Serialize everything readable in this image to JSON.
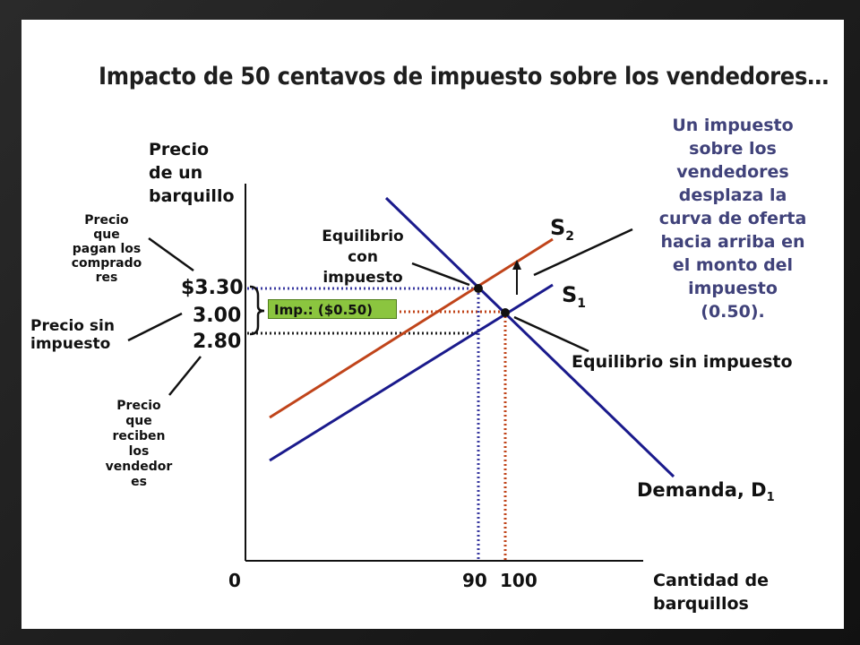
{
  "title": "Impacto de 50 centavos de impuesto sobre los vendedores…",
  "y_axis_label": [
    "Precio",
    "de un",
    "barquillo"
  ],
  "x_axis_label": [
    "Cantidad de",
    "barquillos"
  ],
  "origin_label": "0",
  "price_labels": {
    "p330": "$3.30",
    "p300": "3.00",
    "p280": "2.80"
  },
  "quantity_labels": {
    "q90": "90",
    "q100": "100"
  },
  "left_notes": {
    "buyers_price": [
      "Precio",
      "que",
      "pagan los",
      "comprado",
      "res"
    ],
    "no_tax_price": [
      "Precio sin",
      "impuesto"
    ],
    "sellers_price": [
      "Precio",
      "que",
      "reciben",
      "los",
      "vendedor",
      "es"
    ]
  },
  "tax_box": "Imp.: ($0.50)",
  "eq_with_tax": [
    "Equilibrio",
    "con",
    "impuesto"
  ],
  "eq_without_tax": "Equilibrio sin impuesto",
  "curve_labels": {
    "s2": {
      "letter": "S",
      "sub": "2"
    },
    "s1": {
      "letter": "S",
      "sub": "1"
    },
    "demand": {
      "text": "Demanda, D",
      "sub": "1"
    }
  },
  "explanation": [
    "Un impuesto",
    "sobre los",
    "vendedores",
    "desplaza la",
    "curva de oferta",
    "hacia arriba en",
    "el monto del",
    "impuesto",
    "(0.50)."
  ],
  "colors": {
    "demand": "#1a1a8c",
    "supply_s1": "#1a1a8c",
    "supply_s2": "#c0441a",
    "explanation_text": "#40427a",
    "tax_box": "#8bc53f"
  }
}
